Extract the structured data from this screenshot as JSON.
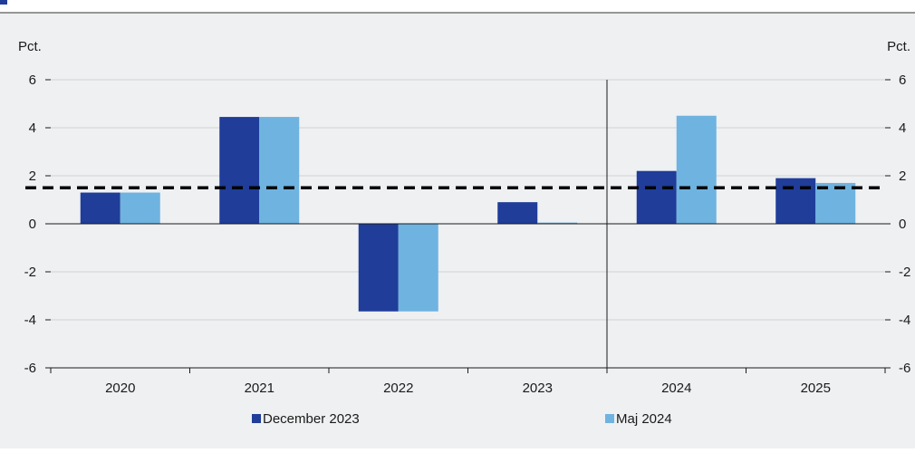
{
  "chart_data": {
    "type": "bar",
    "categories": [
      "2020",
      "2021",
      "2022",
      "2023",
      "2024",
      "2025"
    ],
    "series": [
      {
        "name": "December 2023",
        "values": [
          1.3,
          4.45,
          -3.65,
          0.9,
          2.2,
          1.9
        ],
        "color": "#1f3d99"
      },
      {
        "name": "Maj 2024",
        "values": [
          1.3,
          4.45,
          -3.65,
          0.05,
          4.5,
          1.7
        ],
        "color": "#6fb3e0"
      }
    ],
    "reference_line": {
      "value": 1.5,
      "style": "dashed"
    },
    "divider_after_category": "2023",
    "ylabel_left": "Pct.",
    "ylabel_right": "Pct.",
    "ylim": [
      -6,
      6
    ],
    "yticks": [
      6,
      4,
      2,
      0,
      -2,
      -4,
      -6
    ],
    "legend_position": "bottom",
    "background": "#eef0f2",
    "header_accent": "#1f3d99"
  }
}
